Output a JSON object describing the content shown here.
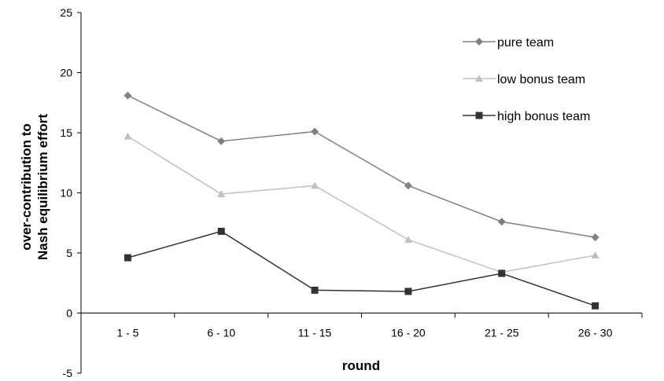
{
  "chart_data": {
    "type": "line",
    "title": "",
    "xlabel": "round",
    "ylabel_lines": [
      "over-contribution to",
      "Nash equilibrium effort"
    ],
    "categories": [
      "1 - 5",
      "6 - 10",
      "11 - 15",
      "16 - 20",
      "21 - 25",
      "26 - 30"
    ],
    "ylim": [
      -5,
      25
    ],
    "yticks": [
      -5,
      0,
      5,
      10,
      15,
      20,
      25
    ],
    "grid": false,
    "legend_position": "top-right",
    "series": [
      {
        "name": "pure team",
        "marker": "diamond",
        "color": "#808080",
        "values": [
          18.1,
          14.3,
          15.1,
          10.6,
          7.6,
          6.3
        ]
      },
      {
        "name": "low bonus team",
        "marker": "triangle",
        "color": "#c0c0c0",
        "values": [
          14.7,
          9.9,
          10.6,
          6.1,
          3.4,
          4.8
        ]
      },
      {
        "name": "high bonus team",
        "marker": "square",
        "color": "#333333",
        "values": [
          4.6,
          6.8,
          1.9,
          1.8,
          3.3,
          0.6
        ]
      }
    ]
  }
}
